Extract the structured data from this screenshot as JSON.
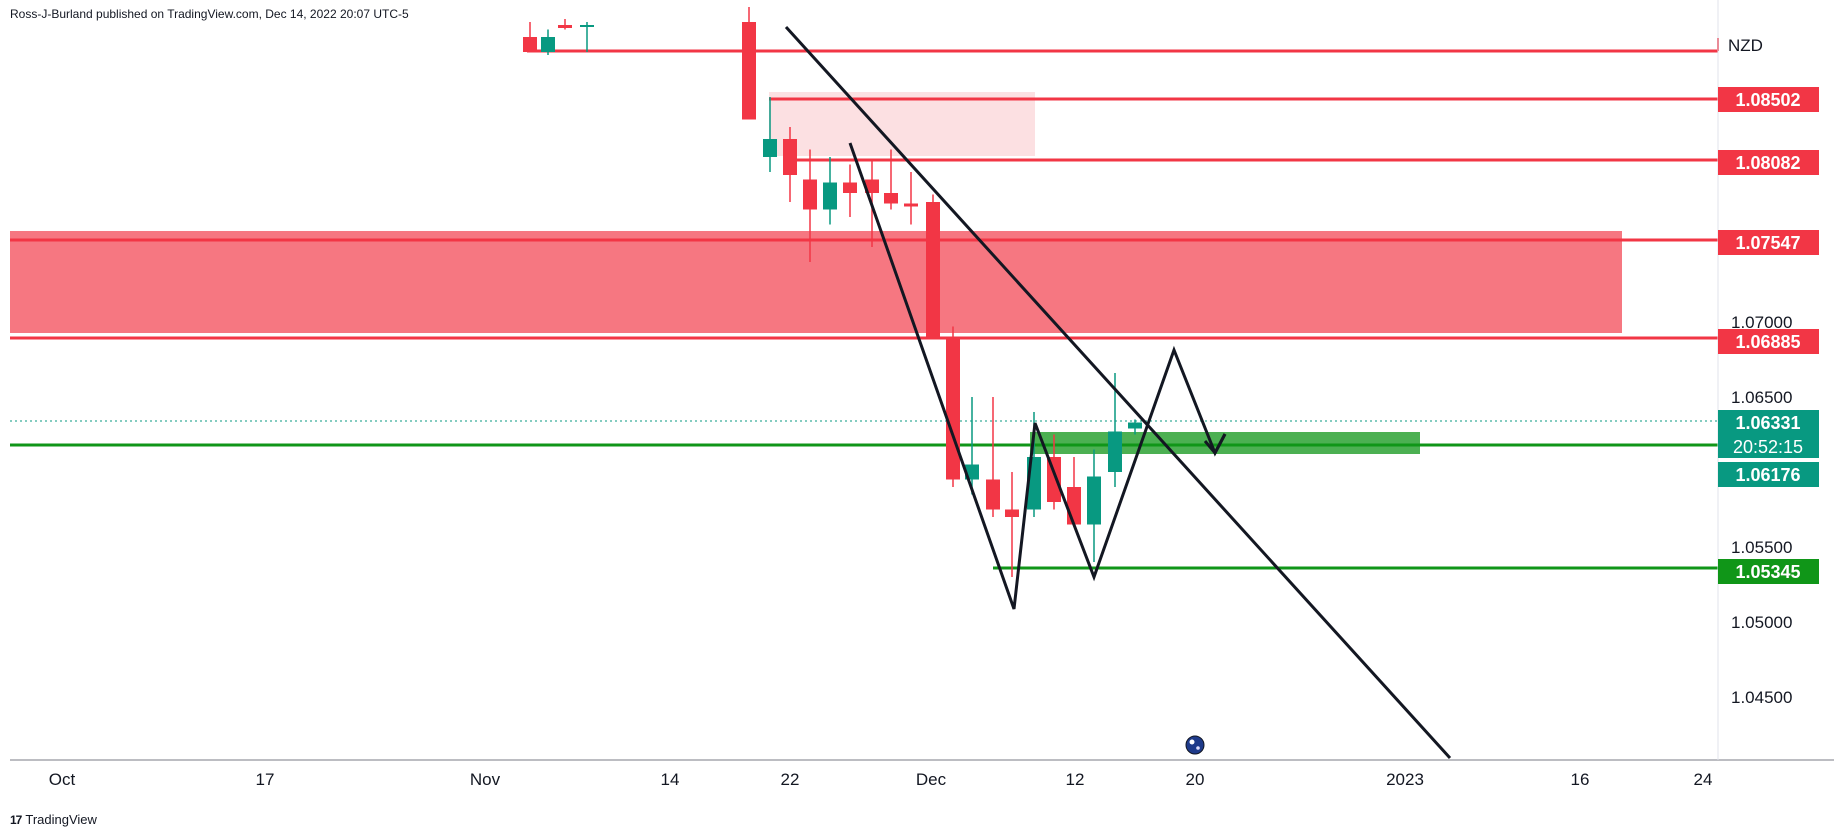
{
  "header": {
    "text": "Ross-J-Burland published on TradingView.com, Dec 14, 2022 20:07 UTC-5"
  },
  "footer": {
    "logo": "17",
    "brand": "TradingView"
  },
  "chart_data": {
    "type": "candlestick",
    "currency": "NZD",
    "y_ticks": [
      "1.07000",
      "1.06500",
      "1.05500",
      "1.05000",
      "1.04500"
    ],
    "y_tick_values": [
      1.07,
      1.065,
      1.055,
      1.05,
      1.045
    ],
    "x_ticks": [
      "Oct",
      "17",
      "Nov",
      "14",
      "22",
      "Dec",
      "12",
      "20",
      "2023",
      "16",
      "24"
    ],
    "ylim": [
      1.0415,
      1.0905
    ],
    "price_tags": [
      {
        "label": "1.08502",
        "value": 1.08502,
        "color": "#f23645"
      },
      {
        "label": "1.08082",
        "value": 1.08082,
        "color": "#f23645"
      },
      {
        "label": "1.07547",
        "value": 1.07547,
        "color": "#f23645"
      },
      {
        "label": "1.06885",
        "value": 1.06885,
        "color": "#f23645"
      },
      {
        "label": "1.06331",
        "value": 1.06331,
        "color": "#089981"
      },
      {
        "label": "1.06176",
        "value": 1.06176,
        "color": "#089981"
      },
      {
        "label": "1.05345",
        "value": 1.05345,
        "color": "#109618"
      }
    ],
    "countdown": "20:52:15",
    "candles": [
      {
        "o": 1.089,
        "h": 1.09,
        "l": 1.088,
        "c": 1.088
      },
      {
        "o": 1.088,
        "h": 1.0895,
        "l": 1.0878,
        "c": 1.089
      },
      {
        "o": 1.0898,
        "h": 1.0902,
        "l": 1.0895,
        "c": 1.0896
      },
      {
        "o": 1.0897,
        "h": 1.09,
        "l": 1.088,
        "c": 1.0898
      },
      {
        "o": 1.09,
        "h": 1.091,
        "l": 1.0835,
        "c": 1.0835
      },
      {
        "o": 1.081,
        "h": 1.085,
        "l": 1.08,
        "c": 1.0822
      },
      {
        "o": 1.0822,
        "h": 1.083,
        "l": 1.078,
        "c": 1.0798
      },
      {
        "o": 1.0795,
        "h": 1.0815,
        "l": 1.074,
        "c": 1.0775
      },
      {
        "o": 1.0775,
        "h": 1.081,
        "l": 1.0765,
        "c": 1.0793
      },
      {
        "o": 1.0793,
        "h": 1.0805,
        "l": 1.077,
        "c": 1.0786
      },
      {
        "o": 1.0795,
        "h": 1.0808,
        "l": 1.075,
        "c": 1.0786
      },
      {
        "o": 1.0786,
        "h": 1.0815,
        "l": 1.0775,
        "c": 1.0779
      },
      {
        "o": 1.0779,
        "h": 1.08,
        "l": 1.0765,
        "c": 1.0777
      },
      {
        "o": 1.078,
        "h": 1.0785,
        "l": 1.069,
        "c": 1.069
      },
      {
        "o": 1.069,
        "h": 1.0697,
        "l": 1.059,
        "c": 1.0595
      },
      {
        "o": 1.0595,
        "h": 1.065,
        "l": 1.0585,
        "c": 1.0605
      },
      {
        "o": 1.0595,
        "h": 1.065,
        "l": 1.057,
        "c": 1.0575
      },
      {
        "o": 1.0575,
        "h": 1.06,
        "l": 1.053,
        "c": 1.057
      },
      {
        "o": 1.0575,
        "h": 1.064,
        "l": 1.057,
        "c": 1.061
      },
      {
        "o": 1.061,
        "h": 1.0625,
        "l": 1.0575,
        "c": 1.058
      },
      {
        "o": 1.059,
        "h": 1.061,
        "l": 1.0565,
        "c": 1.0565
      },
      {
        "o": 1.0565,
        "h": 1.0615,
        "l": 1.054,
        "c": 1.0597
      },
      {
        "o": 1.06,
        "h": 1.0666,
        "l": 1.059,
        "c": 1.0627
      },
      {
        "o": 1.0629,
        "h": 1.0635,
        "l": 1.0625,
        "c": 1.0633
      }
    ]
  }
}
